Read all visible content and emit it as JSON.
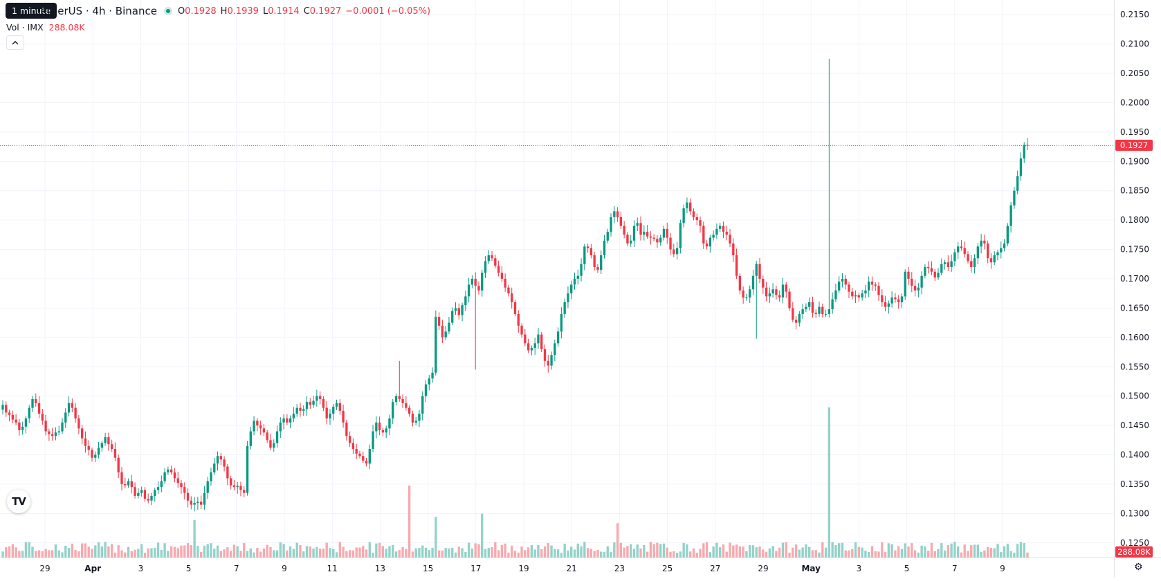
{
  "header": {
    "symbol_title": "TetherUS · 4h · Binance",
    "tooltip": "1 minute",
    "ohlc": {
      "open_label": "O",
      "open": "0.1928",
      "high_label": "H",
      "high": "0.1939",
      "low_label": "L",
      "low": "0.1914",
      "close_label": "C",
      "close": "0.1927",
      "change": "−0.0001 (−0.05%)"
    },
    "volume_label": "Vol · IMX",
    "volume_value": "288.08K"
  },
  "price_tags": {
    "last_price": "0.1927",
    "last_volume": "288.08K"
  },
  "icons": {
    "collapse": "chevron-up-icon",
    "logo": "tradingview-logo-icon",
    "settings": "gear-icon",
    "logo_text": "TV"
  },
  "colors": {
    "up": "#089981",
    "down": "#f23645",
    "vol_up": "#92d2c8",
    "vol_down": "#f7a9ae",
    "grid": "#f0f3fa"
  },
  "chart_data": {
    "type": "candlestick",
    "ylim": [
      0.1225,
      0.2175
    ],
    "y_ticks": [
      "0.1250",
      "0.1300",
      "0.1350",
      "0.1400",
      "0.1450",
      "0.1500",
      "0.1550",
      "0.1600",
      "0.1650",
      "0.1700",
      "0.1750",
      "0.1800",
      "0.1850",
      "0.1900",
      "0.1950",
      "0.2000",
      "0.2050",
      "0.2100",
      "0.2150"
    ],
    "x_ticks": [
      "29",
      "Apr",
      "3",
      "5",
      "7",
      "9",
      "11",
      "13",
      "15",
      "17",
      "19",
      "21",
      "23",
      "25",
      "27",
      "29",
      "May",
      "3",
      "5",
      "7",
      "9"
    ],
    "last_price": 0.1927,
    "close": [
      0.1485,
      0.1472,
      0.1468,
      0.146,
      0.1455,
      0.1442,
      0.1448,
      0.1462,
      0.148,
      0.1495,
      0.1488,
      0.147,
      0.1458,
      0.144,
      0.1435,
      0.1432,
      0.1438,
      0.144,
      0.1455,
      0.1472,
      0.1488,
      0.148,
      0.1462,
      0.1445,
      0.1428,
      0.1415,
      0.1408,
      0.1395,
      0.14,
      0.1412,
      0.142,
      0.143,
      0.1418,
      0.141,
      0.1395,
      0.137,
      0.135,
      0.1348,
      0.1355,
      0.1345,
      0.133,
      0.1335,
      0.134,
      0.1325,
      0.1322,
      0.133,
      0.134,
      0.1345,
      0.1355,
      0.137,
      0.1375,
      0.137,
      0.136,
      0.1352,
      0.1345,
      0.1335,
      0.1322,
      0.1315,
      0.1318,
      0.132,
      0.1315,
      0.1335,
      0.1355,
      0.137,
      0.1385,
      0.1398,
      0.1392,
      0.138,
      0.136,
      0.1348,
      0.1345,
      0.1347,
      0.134,
      0.1335,
      0.1415,
      0.144,
      0.1458,
      0.145,
      0.1445,
      0.1438,
      0.1425,
      0.1412,
      0.142,
      0.144,
      0.1455,
      0.1462,
      0.1455,
      0.1462,
      0.147,
      0.148,
      0.1475,
      0.1478,
      0.149,
      0.1485,
      0.1492,
      0.15,
      0.1495,
      0.148,
      0.1462,
      0.147,
      0.1482,
      0.1488,
      0.1475,
      0.1455,
      0.1432,
      0.142,
      0.141,
      0.1402,
      0.1398,
      0.139,
      0.1385,
      0.141,
      0.144,
      0.1455,
      0.1442,
      0.1438,
      0.1445,
      0.1462,
      0.149,
      0.15,
      0.1495,
      0.1488,
      0.148,
      0.147,
      0.1455,
      0.1458,
      0.147,
      0.15,
      0.152,
      0.153,
      0.154,
      0.1635,
      0.162,
      0.16,
      0.161,
      0.1625,
      0.1645,
      0.165,
      0.1638,
      0.1655,
      0.167,
      0.169,
      0.17,
      0.1688,
      0.168,
      0.171,
      0.173,
      0.174,
      0.1735,
      0.1722,
      0.171,
      0.17,
      0.1685,
      0.1675,
      0.166,
      0.164,
      0.162,
      0.1605,
      0.159,
      0.1578,
      0.1582,
      0.159,
      0.1605,
      0.158,
      0.156,
      0.1552,
      0.157,
      0.159,
      0.161,
      0.164,
      0.166,
      0.1675,
      0.169,
      0.17,
      0.1705,
      0.1725,
      0.1755,
      0.1752,
      0.174,
      0.172,
      0.1715,
      0.174,
      0.1765,
      0.178,
      0.1805,
      0.1815,
      0.1805,
      0.179,
      0.1775,
      0.176,
      0.1765,
      0.179,
      0.1795,
      0.1775,
      0.178,
      0.1772,
      0.177,
      0.1768,
      0.1762,
      0.177,
      0.1785,
      0.177,
      0.175,
      0.1742,
      0.1752,
      0.1795,
      0.182,
      0.183,
      0.1815,
      0.1805,
      0.18,
      0.179,
      0.176,
      0.1755,
      0.177,
      0.1775,
      0.1785,
      0.179,
      0.178,
      0.1775,
      0.176,
      0.174,
      0.1705,
      0.168,
      0.1668,
      0.1668,
      0.1682,
      0.1705,
      0.1725,
      0.17,
      0.1685,
      0.167,
      0.1675,
      0.1682,
      0.1672,
      0.1668,
      0.169,
      0.1678,
      0.165,
      0.163,
      0.1625,
      0.164,
      0.1648,
      0.1652,
      0.166,
      0.1642,
      0.164,
      0.1652,
      0.164,
      0.164,
      0.1648,
      0.1665,
      0.168,
      0.1695,
      0.17,
      0.169,
      0.1678,
      0.167,
      0.1672,
      0.1668,
      0.1675,
      0.168,
      0.1695,
      0.169,
      0.1688,
      0.1672,
      0.166,
      0.1652,
      0.1658,
      0.1668,
      0.1665,
      0.166,
      0.167,
      0.1712,
      0.17,
      0.1688,
      0.168,
      0.1685,
      0.1705,
      0.172,
      0.1718,
      0.1712,
      0.1702,
      0.171,
      0.1725,
      0.1728,
      0.172,
      0.173,
      0.1745,
      0.1755,
      0.1752,
      0.1742,
      0.173,
      0.172,
      0.1735,
      0.1755,
      0.1765,
      0.176,
      0.1735,
      0.1728,
      0.174,
      0.1745,
      0.1752,
      0.176,
      0.179,
      0.1825,
      0.185,
      0.1875,
      0.1905,
      0.1928,
      0.1927
    ],
    "wicks": [
      {
        "index": 250,
        "high": 0.2075
      },
      {
        "index": 143,
        "low": 0.1545
      },
      {
        "index": 166,
        "low": 0.1545
      },
      {
        "index": 228,
        "low": 0.1598
      },
      {
        "index": 120,
        "high": 0.156
      }
    ],
    "volume": {
      "ylim": [
        0,
        50
      ],
      "spikes": [
        {
          "index": 250,
          "value": 48
        },
        {
          "index": 123,
          "value": 23
        },
        {
          "index": 145,
          "value": 14
        },
        {
          "index": 131,
          "value": 13
        },
        {
          "index": 58,
          "value": 12
        },
        {
          "index": 186,
          "value": 11
        }
      ]
    }
  }
}
